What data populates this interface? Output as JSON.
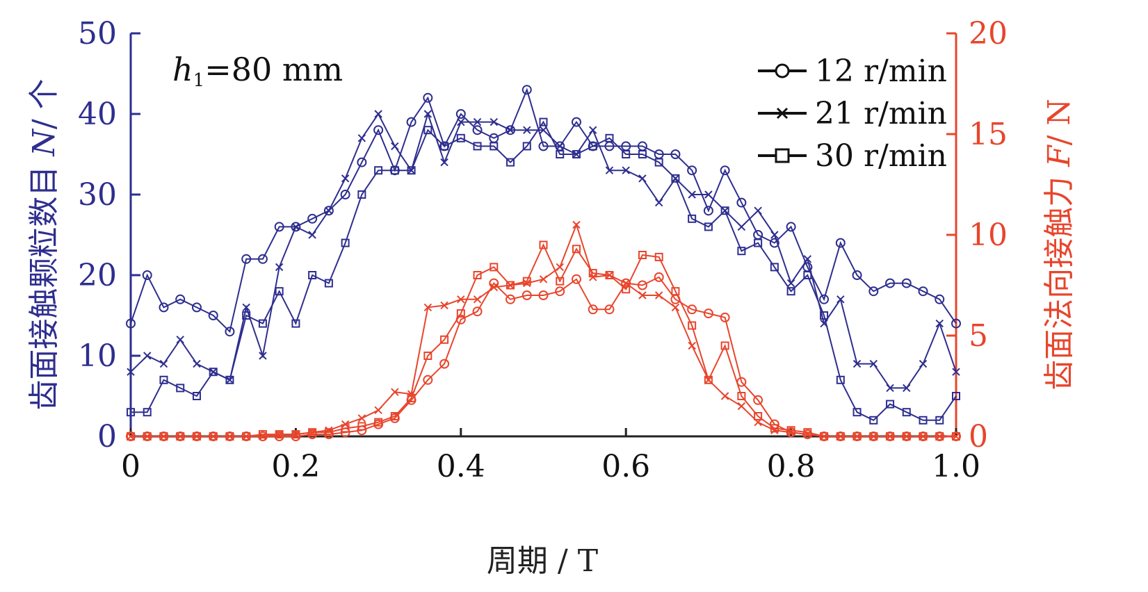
{
  "colors": {
    "left": "#2e2e8f",
    "right": "#e8452c",
    "legend": "#111111"
  },
  "chart_data": {
    "type": "line",
    "xlabel": "周期 / T",
    "ylabel_left": {
      "text": "齿面接触颗粒数目 ",
      "var": "N",
      "unit": "/ 个"
    },
    "ylabel_right": {
      "text": "齿面法向接触力 ",
      "var": "F",
      "unit": "/ N"
    },
    "annotation": {
      "var": "h",
      "sub": "1",
      "rest": "=80 mm"
    },
    "xlim": [
      0,
      1.0
    ],
    "ylim_left": [
      0,
      50
    ],
    "ylim_right": [
      0,
      20
    ],
    "xticks": [
      "0",
      "0.2",
      "0.4",
      "0.6",
      "0.8",
      "1.0"
    ],
    "yticks_left": [
      "0",
      "10",
      "20",
      "30",
      "40",
      "50"
    ],
    "yticks_right": [
      "0",
      "5",
      "10",
      "15",
      "20"
    ],
    "legend": [
      {
        "label": "12 r/min",
        "marker": "circle"
      },
      {
        "label": "21 r/min",
        "marker": "x"
      },
      {
        "label": "30 r/min",
        "marker": "square"
      }
    ],
    "x": [
      0,
      0.02,
      0.04,
      0.06,
      0.08,
      0.1,
      0.12,
      0.14,
      0.16,
      0.18,
      0.2,
      0.22,
      0.24,
      0.26,
      0.28,
      0.3,
      0.32,
      0.34,
      0.36,
      0.38,
      0.4,
      0.42,
      0.44,
      0.46,
      0.48,
      0.5,
      0.52,
      0.54,
      0.56,
      0.58,
      0.6,
      0.62,
      0.64,
      0.66,
      0.68,
      0.7,
      0.72,
      0.74,
      0.76,
      0.78,
      0.8,
      0.82,
      0.84,
      0.86,
      0.88,
      0.9,
      0.92,
      0.94,
      0.96,
      0.98,
      1.0
    ],
    "series": [
      {
        "name": "12 r/min",
        "axis": "left",
        "marker": "circle",
        "values": [
          14,
          20,
          16,
          17,
          16,
          15,
          13,
          22,
          22,
          26,
          26,
          27,
          28,
          30,
          34,
          38,
          33,
          39,
          42,
          36,
          40,
          38,
          37,
          38,
          43,
          36,
          36,
          39,
          36,
          36,
          36,
          36,
          35,
          35,
          33,
          28,
          33,
          29,
          25,
          24,
          26,
          21,
          17,
          24,
          20,
          18,
          19,
          19,
          18,
          17,
          14
        ]
      },
      {
        "name": "21 r/min",
        "axis": "left",
        "marker": "x",
        "values": [
          8,
          10,
          9,
          12,
          9,
          8,
          7,
          16,
          10,
          21,
          26,
          25,
          28,
          32,
          37,
          40,
          36,
          33,
          40,
          34,
          39,
          39,
          39,
          38,
          38,
          38,
          36,
          35,
          38,
          33,
          33,
          32,
          29,
          32,
          30,
          30,
          28,
          26,
          28,
          25,
          19,
          22,
          14,
          17,
          9,
          9,
          6,
          6,
          9,
          14,
          8
        ]
      },
      {
        "name": "30 r/min",
        "axis": "left",
        "marker": "square",
        "values": [
          3,
          3,
          7,
          6,
          5,
          8,
          7,
          15,
          14,
          18,
          14,
          20,
          19,
          24,
          30,
          33,
          33,
          33,
          38,
          36,
          37,
          36,
          36,
          34,
          36,
          39,
          35,
          35,
          36,
          37,
          35,
          35,
          34,
          32,
          27,
          26,
          28,
          23,
          24,
          21,
          18,
          20,
          15,
          7,
          3,
          2,
          4,
          3,
          2,
          2,
          5
        ]
      },
      {
        "name": "12 r/min",
        "axis": "right",
        "marker": "circle",
        "values": [
          0,
          0,
          0,
          0,
          0,
          0,
          0,
          0,
          0,
          0,
          0,
          0.1,
          0.1,
          0.2,
          0.3,
          0.6,
          0.9,
          1.8,
          2.8,
          3.6,
          5.8,
          6.2,
          7.6,
          6.8,
          7.0,
          7.0,
          7.2,
          7.8,
          6.3,
          6.3,
          7.6,
          7.5,
          7.9,
          6.8,
          6.3,
          6.1,
          5.9,
          2.7,
          1.8,
          0.6,
          0.2,
          0.1,
          0,
          0,
          0,
          0,
          0,
          0,
          0,
          0,
          0
        ]
      },
      {
        "name": "21 r/min",
        "axis": "right",
        "marker": "x",
        "values": [
          0,
          0,
          0,
          0,
          0,
          0,
          0,
          0,
          0,
          0.1,
          0.1,
          0.2,
          0.3,
          0.6,
          0.9,
          1.3,
          2.2,
          2.1,
          6.4,
          6.5,
          6.8,
          6.8,
          7.4,
          7.5,
          7.6,
          7.8,
          8.4,
          10.5,
          7.9,
          8.0,
          7.6,
          7.0,
          7.0,
          6.4,
          4.5,
          2.8,
          2.0,
          1.5,
          0.7,
          0.3,
          0.2,
          0.1,
          0,
          0,
          0,
          0,
          0,
          0,
          0,
          0,
          0
        ]
      },
      {
        "name": "30 r/min",
        "axis": "right",
        "marker": "square",
        "values": [
          0,
          0,
          0,
          0,
          0,
          0,
          0,
          0,
          0.1,
          0.1,
          0.1,
          0.2,
          0.2,
          0.4,
          0.5,
          0.7,
          1.0,
          1.9,
          4.0,
          4.8,
          6.1,
          8.0,
          8.4,
          7.5,
          7.7,
          9.5,
          7.7,
          9.3,
          8.1,
          8.0,
          7.3,
          9.0,
          8.9,
          7.2,
          5.5,
          2.8,
          4.5,
          2.0,
          1.0,
          0.4,
          0.3,
          0.2,
          0,
          0,
          0,
          0,
          0,
          0,
          0,
          0,
          0
        ]
      }
    ]
  }
}
